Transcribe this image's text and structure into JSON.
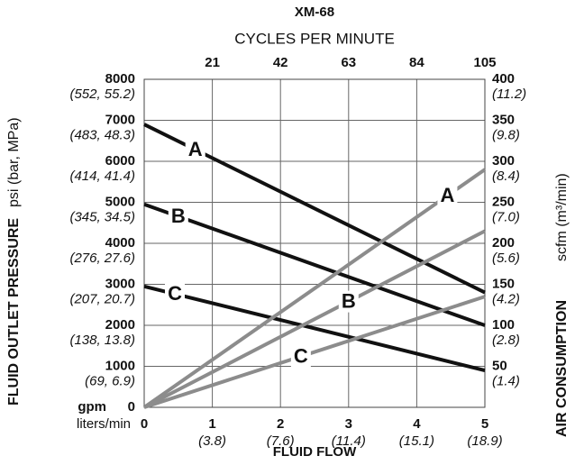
{
  "chart_data": {
    "type": "line",
    "title": "XM-68",
    "top_axis_label": "CYCLES PER MINUTE",
    "top_ticks": [
      21,
      42,
      63,
      84,
      105
    ],
    "x_label": "FLUID FLOW",
    "x_unit_main": "gpm",
    "x_unit_sub": "liters/min",
    "y_label_bold": "FLUID OUTLET PRESSURE",
    "y_label_unit": "psi (bar, MPa)",
    "y2_label_bold": "AIR CONSUMPTION",
    "y2_label_unit": "scfm (m³/min)",
    "x": [
      0,
      5
    ],
    "xlim": [
      0,
      5
    ],
    "xticks": [
      0,
      1,
      2,
      3,
      4,
      5
    ],
    "xtick_sublabels": [
      "(3.8)",
      "(7.6)",
      "(11.4)",
      "(15.1)",
      "(18.9)"
    ],
    "ylim": [
      0,
      8000
    ],
    "yticks": [
      0,
      1000,
      2000,
      3000,
      4000,
      5000,
      6000,
      7000,
      8000
    ],
    "ytick_sublabels": [
      "(69, 6.9)",
      "(138, 13.8)",
      "(207, 20.7)",
      "(276, 27.6)",
      "(345, 34.5)",
      "(414, 41.4)",
      "(483, 48.3)",
      "(552, 55.2)"
    ],
    "y2lim": [
      0,
      400
    ],
    "y2ticks": [
      50,
      100,
      150,
      200,
      250,
      300,
      350,
      400
    ],
    "y2tick_sublabels": [
      "(1.4)",
      "(2.8)",
      "(4.2)",
      "(5.6)",
      "(7.0)",
      "(8.4)",
      "(9.8)",
      "(11.2)"
    ],
    "grid": true,
    "series": [
      {
        "name": "A",
        "color": "#111111",
        "values": [
          6900,
          2800
        ]
      },
      {
        "name": "B",
        "color": "#111111",
        "values": [
          4950,
          2000
        ]
      },
      {
        "name": "C",
        "color": "#111111",
        "values": [
          2950,
          900
        ]
      },
      {
        "name": "A",
        "color": "#8c8c8c",
        "axis": "y2",
        "values": [
          0,
          290
        ]
      },
      {
        "name": "B",
        "color": "#8c8c8c",
        "axis": "y2",
        "values": [
          0,
          215
        ]
      },
      {
        "name": "C",
        "color": "#8c8c8c",
        "axis": "y2",
        "values": [
          0,
          135
        ]
      }
    ]
  }
}
